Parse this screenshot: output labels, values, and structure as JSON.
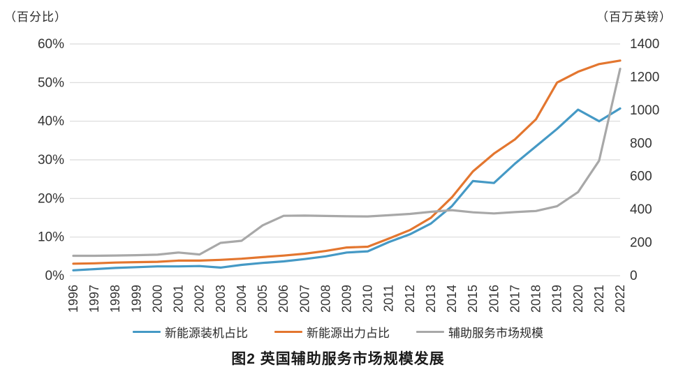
{
  "header": {
    "y_left_unit": "（百分比）",
    "y_right_unit": "（百万英镑）"
  },
  "chart_data": {
    "type": "line",
    "title": "图2  英国辅助服务市场规模发展",
    "grid": true,
    "legend_position": "bottom",
    "categories": [
      "1996",
      "1997",
      "1998",
      "1999",
      "2000",
      "2001",
      "2002",
      "2003",
      "2004",
      "2005",
      "2006",
      "2007",
      "2008",
      "2009",
      "2010",
      "2011",
      "2012",
      "2013",
      "2014",
      "2015",
      "2016",
      "2017",
      "2018",
      "2019",
      "2020",
      "2021",
      "2022"
    ],
    "y_left": {
      "unit": "（百分比）",
      "min": 0,
      "max": 60,
      "ticks": [
        "60%",
        "50%",
        "40%",
        "30%",
        "20%",
        "10%",
        "0%"
      ]
    },
    "y_right": {
      "unit": "（百万英镑）",
      "min": 0,
      "max": 1400,
      "ticks": [
        "1400",
        "1200",
        "1000",
        "800",
        "600",
        "400",
        "200",
        "0"
      ]
    },
    "series": [
      {
        "name": "新能源装机占比",
        "axis": "left",
        "color": "#4599C5",
        "values": [
          1.4,
          1.7,
          2.0,
          2.2,
          2.4,
          2.4,
          2.5,
          2.1,
          2.8,
          3.3,
          3.7,
          4.3,
          5.0,
          6.0,
          6.3,
          8.7,
          10.7,
          13.5,
          18.0,
          24.5,
          24.0,
          29.0,
          33.5,
          38.0,
          43.0,
          40.0,
          43.3
        ]
      },
      {
        "name": "新能源出力占比",
        "axis": "left",
        "color": "#E3762F",
        "values": [
          3.1,
          3.2,
          3.4,
          3.5,
          3.6,
          3.9,
          3.9,
          4.1,
          4.4,
          4.8,
          5.2,
          5.7,
          6.4,
          7.3,
          7.5,
          9.6,
          11.8,
          15.0,
          20.3,
          27.0,
          31.6,
          35.3,
          40.5,
          50.0,
          52.8,
          54.8,
          55.7
        ]
      },
      {
        "name": "辅助服务市场规模",
        "axis": "right",
        "color": "#A8A8A8",
        "values": [
          120,
          120,
          122,
          124,
          127,
          140,
          128,
          198,
          211,
          304,
          362,
          363,
          361,
          359,
          358,
          365,
          373,
          386,
          396,
          383,
          376,
          384,
          391,
          420,
          505,
          695,
          1250
        ]
      }
    ]
  }
}
